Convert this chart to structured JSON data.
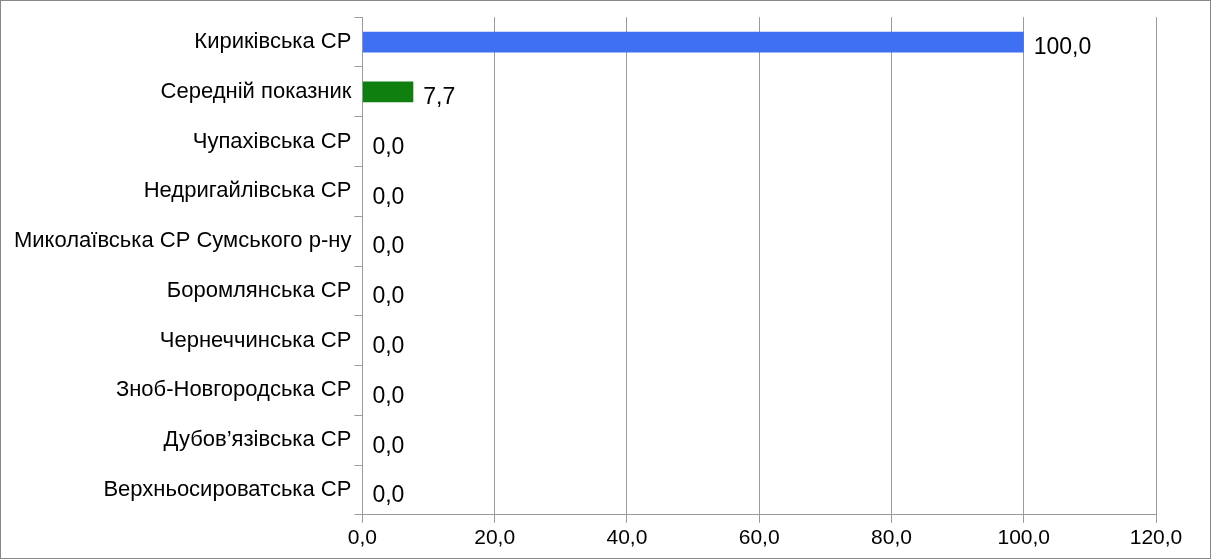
{
  "chart_data": {
    "type": "bar",
    "orientation": "horizontal",
    "categories": [
      "Кириківська СР",
      "Середній показник",
      "Чупахівська СР",
      "Недригайлівська СР",
      "Миколаївська СР Сумського р-ну",
      "Боромлянська СР",
      "Чернеччинська СР",
      "Зноб-Новгородська СР",
      "Дубов’язівська СР",
      "Верхньосироватська СР"
    ],
    "values": [
      100,
      7.7,
      0,
      0,
      0,
      0,
      0,
      0,
      0,
      0
    ],
    "colors": [
      "#3f6ff2",
      "#0f7f0f",
      "#3f6ff2",
      "#3f6ff2",
      "#3f6ff2",
      "#3f6ff2",
      "#3f6ff2",
      "#3f6ff2",
      "#3f6ff2",
      "#3f6ff2"
    ],
    "value_labels": [
      "100,0",
      "7,7",
      "0,0",
      "0,0",
      "0,0",
      "0,0",
      "0,0",
      "0,0",
      "0,0",
      "0,0"
    ],
    "xlim": [
      0,
      120
    ],
    "xticks": [
      {
        "value": 0,
        "label": "0,0"
      },
      {
        "value": 20,
        "label": "20,0"
      },
      {
        "value": 40,
        "label": "40,0"
      },
      {
        "value": 60,
        "label": "60,0"
      },
      {
        "value": 80,
        "label": "80,0"
      },
      {
        "value": 100,
        "label": "100,0"
      },
      {
        "value": 120,
        "label": "120,0"
      }
    ],
    "grid": "x",
    "legend": false
  }
}
